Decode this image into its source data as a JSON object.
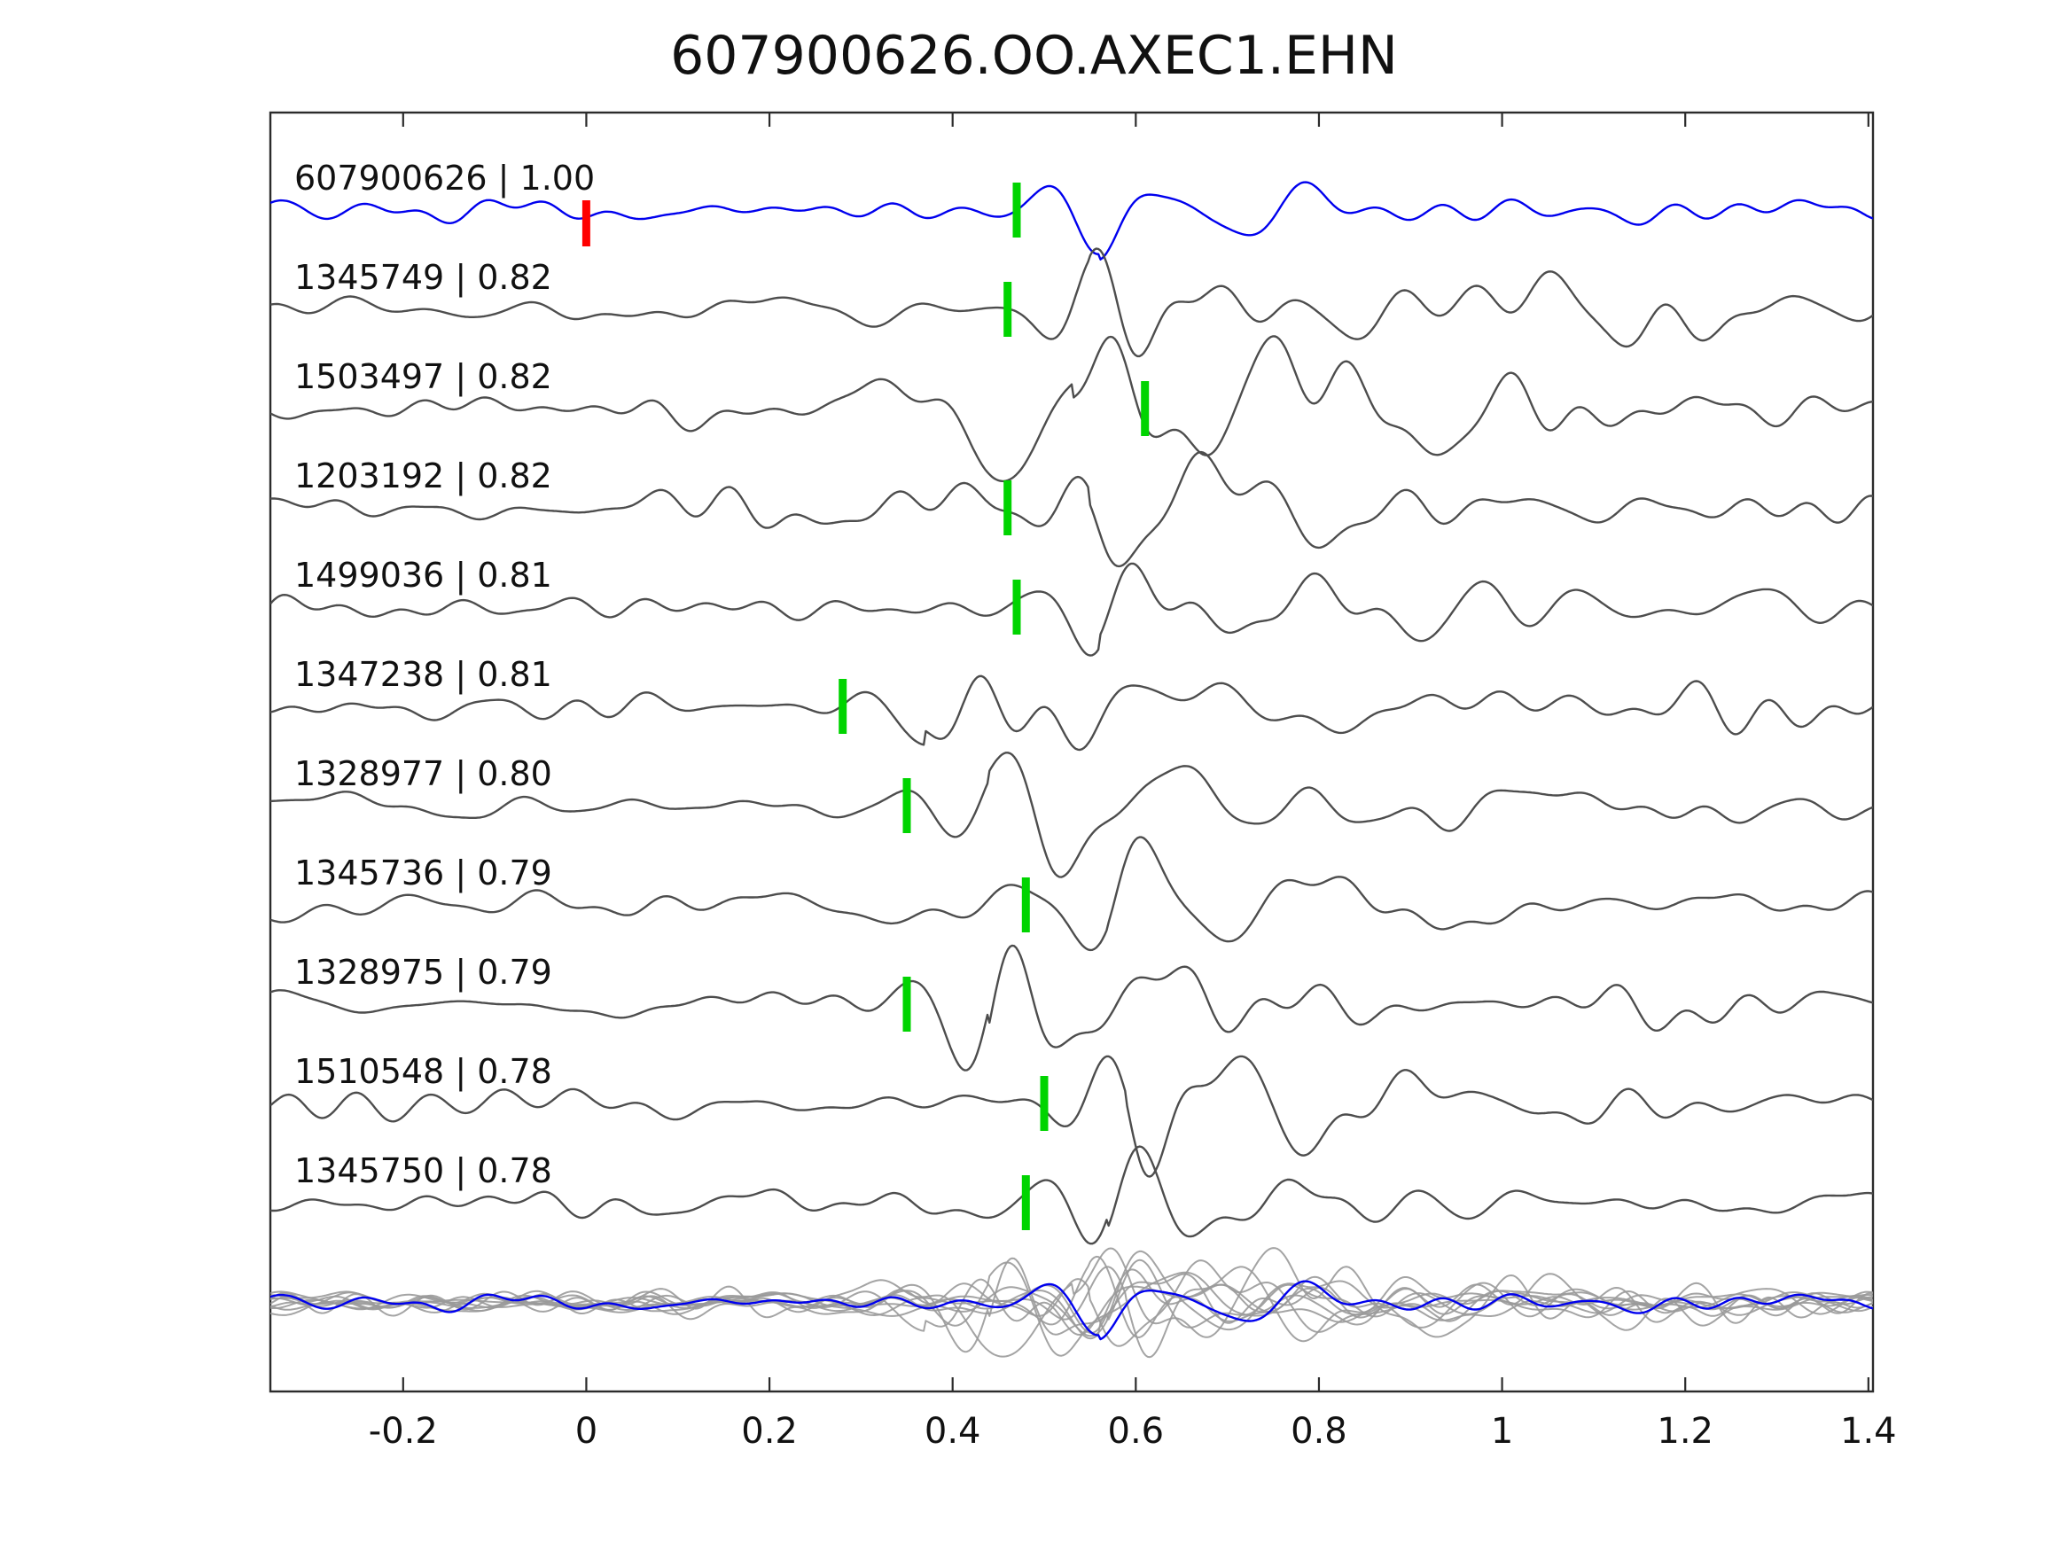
{
  "title": "607900626.OO.AXEC1.EHN",
  "axis": {
    "xtick_labels": [
      "-0.2",
      "0",
      "0.2",
      "0.4",
      "0.6",
      "0.8",
      "1",
      "1.2",
      "1.4"
    ]
  },
  "chart_data": {
    "type": "line",
    "title": "607900626.OO.AXEC1.EHN",
    "xlabel": "",
    "ylabel": "",
    "xlim": [
      -0.345,
      1.405
    ],
    "xticks": [
      -0.2,
      0,
      0.2,
      0.4,
      0.6,
      0.8,
      1.0,
      1.2,
      1.4
    ],
    "grid": false,
    "legend": "none",
    "description_traces": "stacked seismogram waveforms; each row = one event trace labeled 'id | correlation'; green bar = pick time; red bar on reference = time zero; bottom row = all traces overlaid with blue reference",
    "traces": [
      {
        "id": "607900626",
        "correlation": 1.0,
        "label": "607900626 | 1.00",
        "pick_time": 0.47,
        "reference": true,
        "origin_time_marker": 0.0,
        "color": "#0000ee"
      },
      {
        "id": "1345749",
        "correlation": 0.82,
        "label": "1345749 | 0.82",
        "pick_time": 0.46,
        "reference": false,
        "color": "#4d4d4d"
      },
      {
        "id": "1503497",
        "correlation": 0.82,
        "label": "1503497 | 0.82",
        "pick_time": 0.61,
        "reference": false,
        "color": "#4d4d4d"
      },
      {
        "id": "1203192",
        "correlation": 0.82,
        "label": "1203192 | 0.82",
        "pick_time": 0.46,
        "reference": false,
        "color": "#4d4d4d"
      },
      {
        "id": "1499036",
        "correlation": 0.81,
        "label": "1499036 | 0.81",
        "pick_time": 0.47,
        "reference": false,
        "color": "#4d4d4d"
      },
      {
        "id": "1347238",
        "correlation": 0.81,
        "label": "1347238 | 0.81",
        "pick_time": 0.28,
        "reference": false,
        "color": "#4d4d4d"
      },
      {
        "id": "1328977",
        "correlation": 0.8,
        "label": "1328977 | 0.80",
        "pick_time": 0.35,
        "reference": false,
        "color": "#4d4d4d"
      },
      {
        "id": "1345736",
        "correlation": 0.79,
        "label": "1345736 | 0.79",
        "pick_time": 0.48,
        "reference": false,
        "color": "#4d4d4d"
      },
      {
        "id": "1328975",
        "correlation": 0.79,
        "label": "1328975 | 0.79",
        "pick_time": 0.35,
        "reference": false,
        "color": "#4d4d4d"
      },
      {
        "id": "1510548",
        "correlation": 0.78,
        "label": "1510548 | 0.78",
        "pick_time": 0.5,
        "reference": false,
        "color": "#4d4d4d"
      },
      {
        "id": "1345750",
        "correlation": 0.78,
        "label": "1345750 | 0.78",
        "pick_time": 0.48,
        "reference": false,
        "color": "#4d4d4d"
      }
    ],
    "markers": {
      "pick_color": "#00d400",
      "origin_color": "#ff0000",
      "overlay_color": "#9a9a9a",
      "overlay_reference_color": "#0000ee",
      "frame_color": "#2b2b2b",
      "text_color": "#111111"
    }
  }
}
